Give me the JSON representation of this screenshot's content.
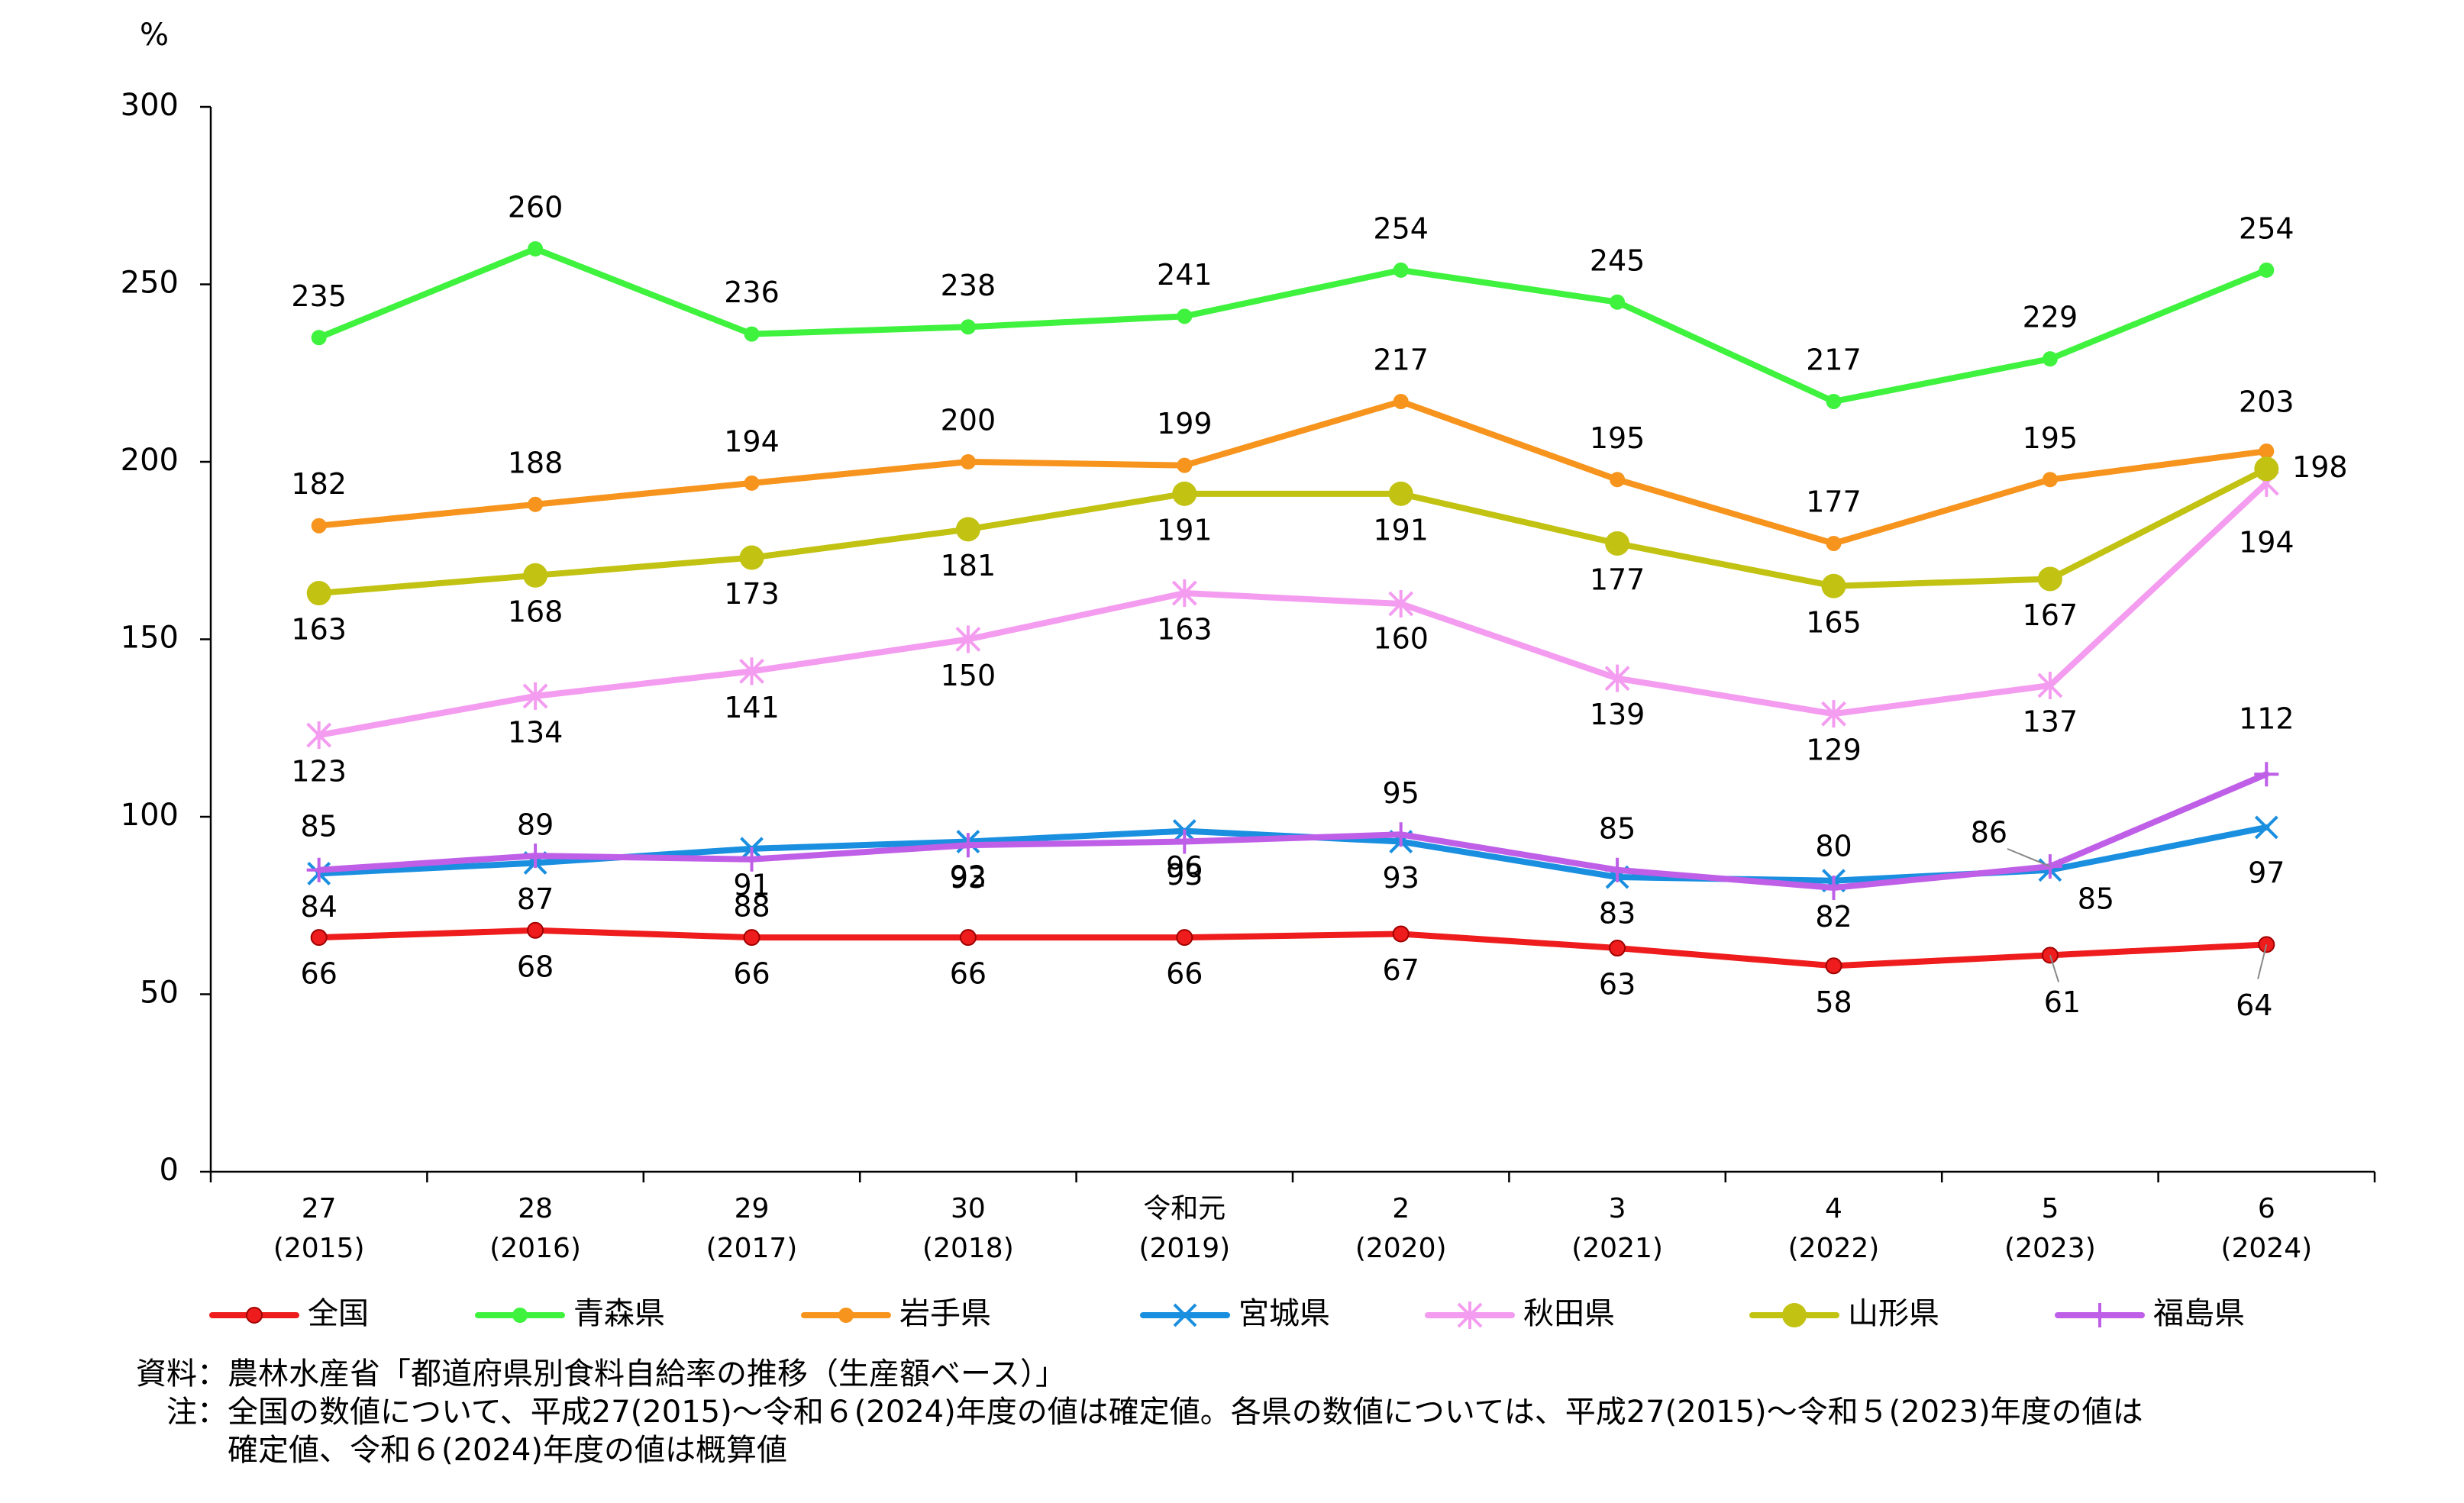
{
  "chart_data": {
    "type": "line",
    "ylabel": "%",
    "ylim": [
      0,
      300
    ],
    "yticks": [
      0,
      50,
      100,
      150,
      200,
      250,
      300
    ],
    "categories": [
      [
        "27",
        "(2015)"
      ],
      [
        "28",
        "(2016)"
      ],
      [
        "29",
        "(2017)"
      ],
      [
        "30",
        "(2018)"
      ],
      [
        "令和元",
        "(2019)"
      ],
      [
        "2",
        "(2020)"
      ],
      [
        "3",
        "(2021)"
      ],
      [
        "4",
        "(2022)"
      ],
      [
        "5",
        "(2023)"
      ],
      [
        "6",
        "(2024)"
      ]
    ],
    "legend_position": "bottom",
    "series": [
      {
        "name": "全国",
        "color": "#ee1c1c",
        "marker": "circle-small",
        "values": [
          66,
          68,
          66,
          66,
          66,
          67,
          63,
          58,
          61,
          64
        ]
      },
      {
        "name": "青森県",
        "color": "#3ef23e",
        "marker": "dot",
        "values": [
          235,
          260,
          236,
          238,
          241,
          254,
          245,
          217,
          229,
          254
        ]
      },
      {
        "name": "岩手県",
        "color": "#f7941d",
        "marker": "dot",
        "values": [
          182,
          188,
          194,
          200,
          199,
          217,
          195,
          177,
          195,
          203
        ]
      },
      {
        "name": "宮城県",
        "color": "#1a8fe0",
        "marker": "x",
        "values": [
          84,
          87,
          91,
          93,
          96,
          93,
          83,
          82,
          85,
          97
        ]
      },
      {
        "name": "秋田県",
        "color": "#f49cf0",
        "marker": "asterisk",
        "values": [
          123,
          134,
          141,
          150,
          163,
          160,
          139,
          129,
          137,
          194
        ]
      },
      {
        "name": "山形県",
        "color": "#c2c212",
        "marker": "circle-large",
        "values": [
          163,
          168,
          173,
          181,
          191,
          191,
          177,
          165,
          167,
          198
        ]
      },
      {
        "name": "福島県",
        "color": "#bf5fe8",
        "marker": "plus",
        "values": [
          85,
          89,
          88,
          92,
          93,
          95,
          85,
          80,
          86,
          112
        ]
      }
    ]
  },
  "notes": {
    "source_label": "資料：",
    "source_text": "農林水産省「都道府県別食料自給率の推移（生産額ベース）」",
    "note_label": "注：",
    "note_line1": "全国の数値について、平成27(2015)～令和６(2024)年度の値は確定値。各県の数値については、平成27(2015)～令和５(2023)年度の値は",
    "note_line2": "確定値、令和６(2024)年度の値は概算値"
  }
}
